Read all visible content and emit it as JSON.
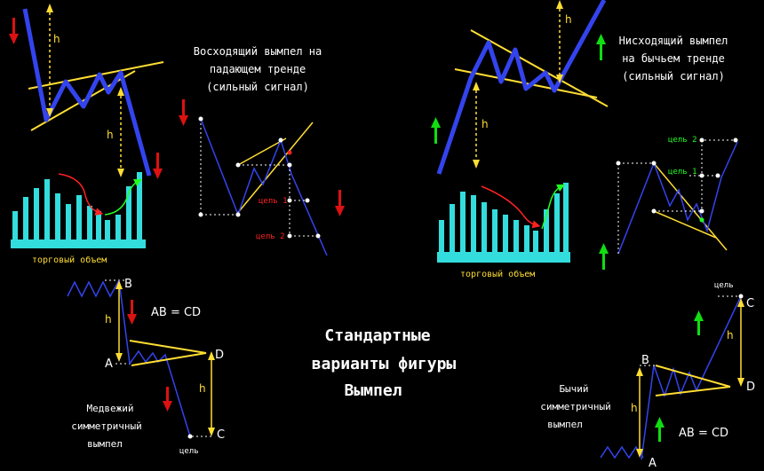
{
  "title_lines": [
    "Стандартные",
    "варианты фигуры",
    "Вымпел"
  ],
  "bear_pennant_down_trend": {
    "caption_lines": [
      "Восходящий вымпел на",
      "падающем тренде",
      "(сильный сигнал)"
    ],
    "h_label_top": "h",
    "h_label_bottom": "h",
    "volume_label": "торговый объем",
    "target1": "цель 1",
    "target2": "цель 2"
  },
  "bull_pennant_up_trend": {
    "caption_lines": [
      "Нисходящий вымпел",
      "на бычьем тренде",
      "(сильный сигнал)"
    ],
    "h_label_top": "h",
    "h_label_bottom": "h",
    "volume_label": "торговый объем",
    "target1": "цель 1",
    "target2": "цель 2"
  },
  "bear_symmetric": {
    "caption_lines": [
      "Медвежий",
      "симметричный",
      "вымпел"
    ],
    "formula": "AB = CD",
    "point_a": "A",
    "point_b": "B",
    "point_c": "C",
    "point_d": "D",
    "h_left": "h",
    "h_right": "h",
    "target": "цель"
  },
  "bull_symmetric": {
    "caption_lines": [
      "Бычий",
      "симметричный",
      "вымпел"
    ],
    "formula": "AB = CD",
    "point_a": "A",
    "point_b": "B",
    "point_c": "C",
    "point_d": "D",
    "h_left": "h",
    "h_right": "h",
    "target": "цель"
  },
  "colors": {
    "background": "#000000",
    "trend": "#3344ee",
    "channel": "#ffdd33",
    "measure": "#ffdd33",
    "volume": "#33dddd",
    "down_arrow": "#dd1111",
    "up_arrow": "#11dd11",
    "target_red": "#ff2222",
    "target_green": "#22ff22",
    "text": "#ffffff"
  }
}
